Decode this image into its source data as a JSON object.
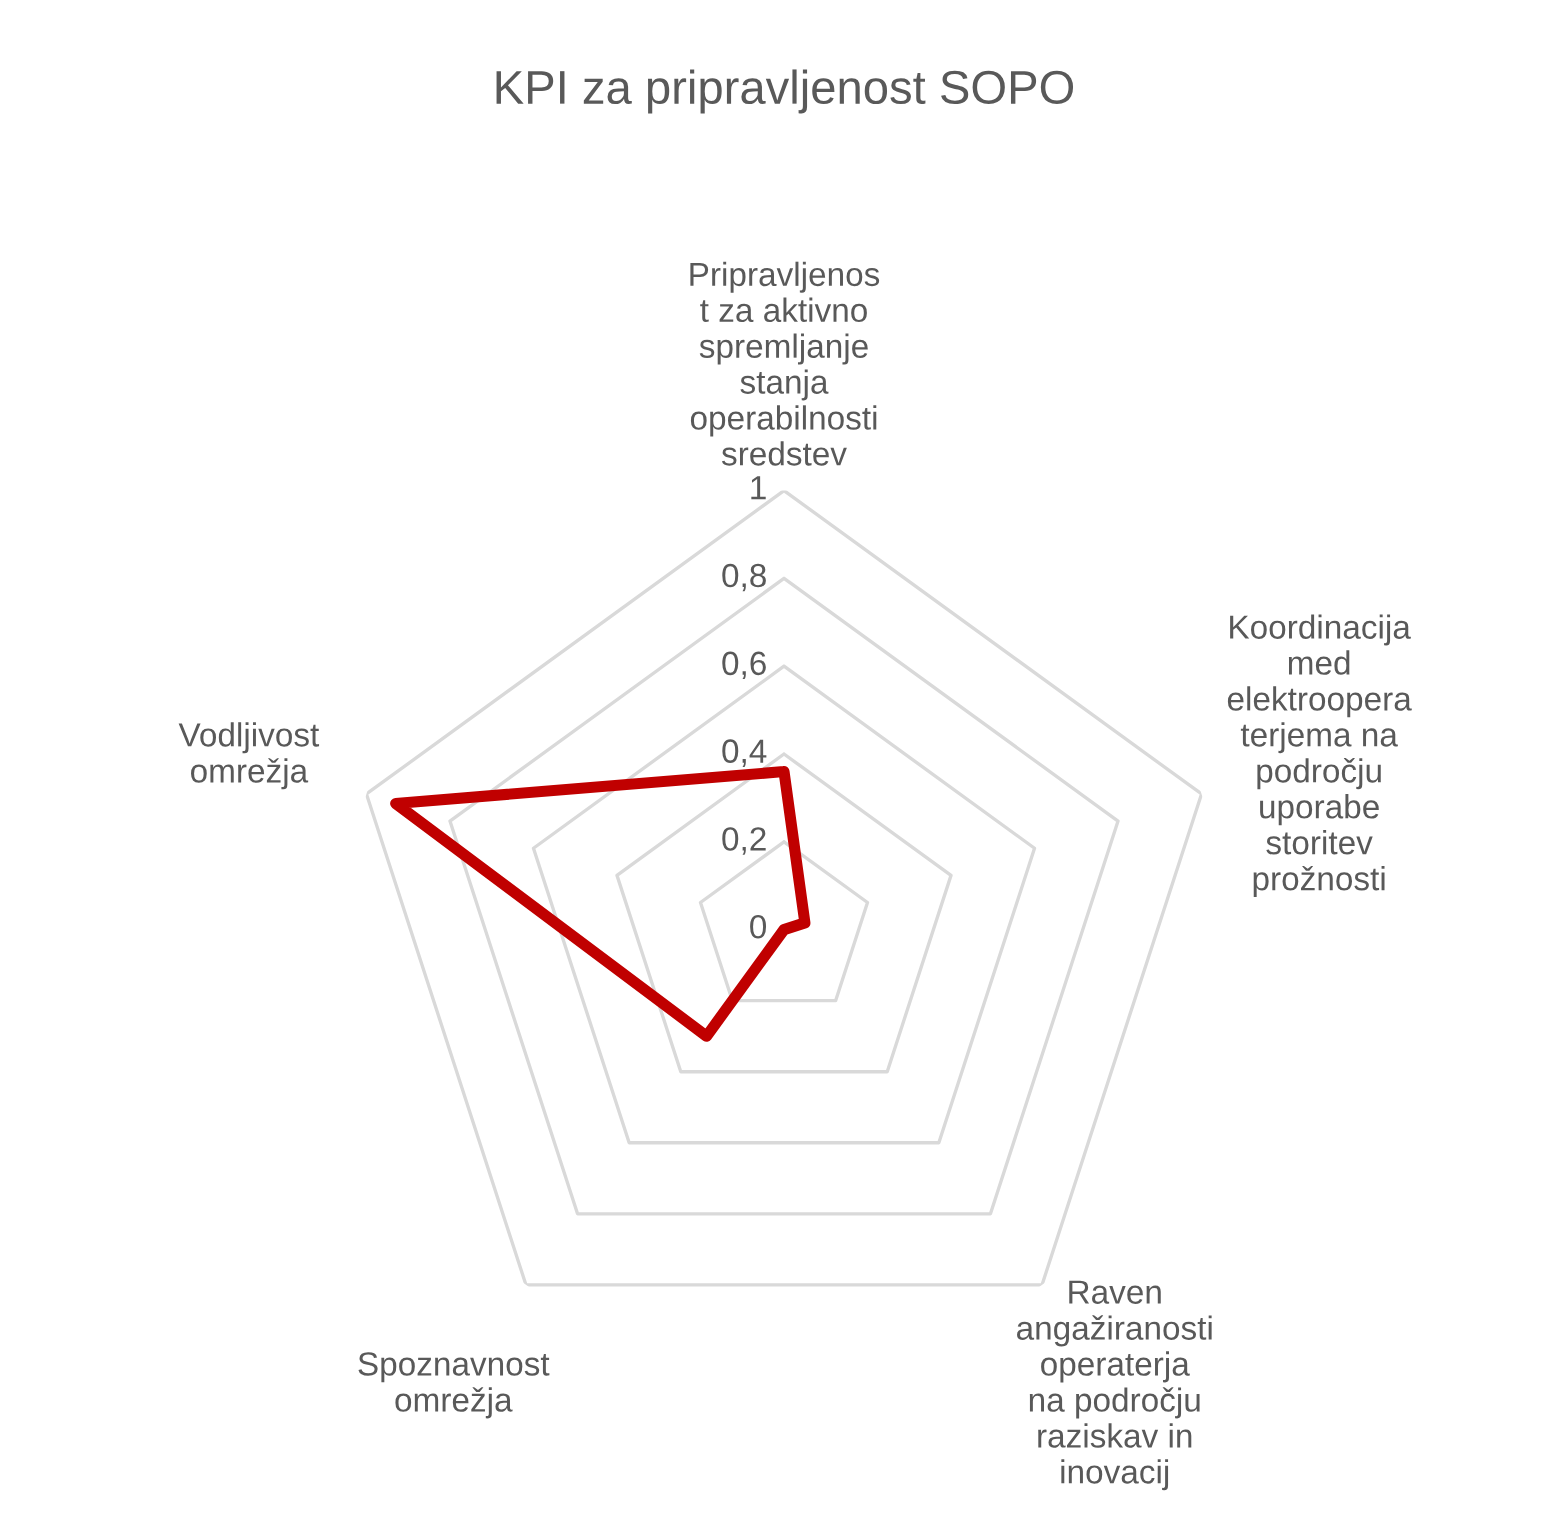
{
  "chart_data": {
    "type": "radar",
    "title": "KPI za pripravljenost SOPO",
    "categories": [
      "Pripravljenos\nt za aktivno\nspremljanje\nstanja\noperabilnosti\nsredstev",
      "Koordinacija\nmed\nelektroopera\nterjema na\npodročju\nuporabe\nstoritev\nprožnosti",
      "Raven\nangažiranosti\noperaterja\nna področju\nraziskav in\ninovacij",
      "Spoznavnost\nomrežja",
      "Vodljivost\nomrežja"
    ],
    "series": [
      {
        "color": "#c00000",
        "values": [
          0.36,
          0.05,
          0,
          0.3,
          0.93
        ]
      }
    ],
    "ylim": [
      0,
      1
    ],
    "yticks": [
      {
        "value": 0,
        "label": "0"
      },
      {
        "value": 0.2,
        "label": "0,2"
      },
      {
        "value": 0.4,
        "label": "0,4"
      },
      {
        "value": 0.6,
        "label": "0,6"
      },
      {
        "value": 0.8,
        "label": "0,8"
      },
      {
        "value": 1,
        "label": "1"
      }
    ],
    "grid": true,
    "marker": "none",
    "line_style": "solid"
  }
}
